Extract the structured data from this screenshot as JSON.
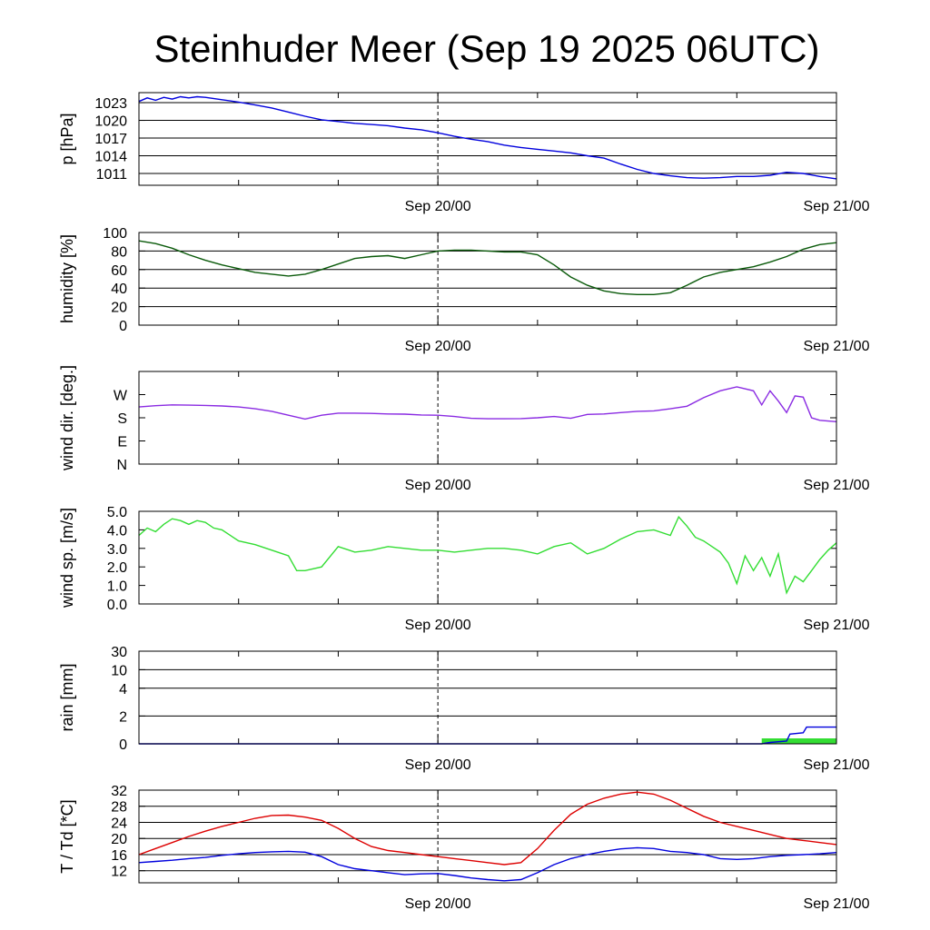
{
  "title": "Steinhuder Meer (Sep 19 2025 06UTC)",
  "x_ticks": [
    "Sep 20/00",
    "Sep 21/00"
  ],
  "chart_data": [
    {
      "type": "line",
      "id": "pressure",
      "ylabel": "p [hPa]",
      "ylim": [
        1009,
        1024.7
      ],
      "yticks": [
        1011,
        1014,
        1017,
        1020,
        1023
      ],
      "ytick_labels": [
        "1011",
        "1014",
        "1017",
        "1020",
        "1023"
      ],
      "gridlines": [
        1011,
        1014,
        1017,
        1020,
        1023
      ],
      "x_range_hours": [
        0,
        42
      ],
      "x_tick_hours": [
        18,
        42
      ],
      "series": [
        {
          "color": "#0000dd",
          "x": [
            0,
            0.5,
            1,
            1.5,
            2,
            2.5,
            3,
            3.5,
            4,
            5,
            6,
            7,
            8,
            9,
            10,
            11,
            12,
            13,
            14,
            15,
            16,
            17,
            18,
            19,
            20,
            21,
            22,
            23,
            24,
            25,
            26,
            27,
            28,
            29,
            30,
            31,
            32,
            33,
            34,
            35,
            36,
            37,
            38,
            39,
            40,
            41,
            42
          ],
          "y": [
            1023.2,
            1023.8,
            1023.4,
            1023.9,
            1023.6,
            1024.0,
            1023.8,
            1024.0,
            1023.9,
            1023.5,
            1023.1,
            1022.6,
            1022.1,
            1021.4,
            1020.7,
            1020.1,
            1019.8,
            1019.5,
            1019.3,
            1019.1,
            1018.7,
            1018.4,
            1017.9,
            1017.3,
            1016.8,
            1016.4,
            1015.8,
            1015.4,
            1015.1,
            1014.8,
            1014.5,
            1014.0,
            1013.6,
            1012.6,
            1011.7,
            1011.0,
            1010.6,
            1010.3,
            1010.2,
            1010.3,
            1010.5,
            1010.5,
            1010.7,
            1011.2,
            1011.0,
            1010.5,
            1010.1
          ]
        }
      ]
    },
    {
      "type": "line",
      "id": "humidity",
      "ylabel": "humidity [%]",
      "ylim": [
        0,
        100
      ],
      "yticks": [
        0,
        20,
        40,
        60,
        80,
        100
      ],
      "ytick_labels": [
        "0",
        "20",
        "40",
        "60",
        "80",
        "100"
      ],
      "gridlines": [
        20,
        40,
        60,
        80
      ],
      "x_range_hours": [
        0,
        42
      ],
      "x_tick_hours": [
        18,
        42
      ],
      "series": [
        {
          "color": "#0a5a0a",
          "x": [
            0,
            1,
            2,
            3,
            4,
            5,
            6,
            7,
            8,
            9,
            10,
            11,
            12,
            13,
            14,
            15,
            16,
            17,
            18,
            19,
            20,
            21,
            22,
            23,
            24,
            25,
            26,
            27,
            28,
            29,
            30,
            31,
            32,
            33,
            34,
            35,
            36,
            37,
            38,
            39,
            40,
            41,
            42
          ],
          "y": [
            91,
            88,
            83,
            76,
            70,
            65,
            61,
            57,
            55,
            53,
            55,
            60,
            66,
            72,
            74,
            75,
            72,
            76,
            80,
            81,
            81,
            80,
            79,
            79,
            76,
            65,
            52,
            43,
            37,
            34,
            33,
            33,
            35,
            43,
            52,
            57,
            60,
            63,
            68,
            74,
            82,
            87,
            89
          ]
        }
      ]
    },
    {
      "type": "line",
      "id": "wind-direction",
      "ylabel": "wind dir. [deg.]",
      "ylim": [
        0,
        360
      ],
      "yticks": [
        0,
        90,
        180,
        270
      ],
      "ytick_labels": [
        "N",
        "E",
        "S",
        "W"
      ],
      "gridlines": [],
      "x_range_hours": [
        0,
        42
      ],
      "x_tick_hours": [
        18,
        42
      ],
      "series": [
        {
          "color": "#8a2be2",
          "x": [
            0,
            1,
            2,
            3,
            4,
            5,
            6,
            7,
            8,
            9,
            10,
            11,
            12,
            13,
            14,
            15,
            16,
            17,
            18,
            19,
            20,
            21,
            22,
            23,
            24,
            25,
            26,
            27,
            28,
            29,
            30,
            31,
            32,
            33,
            34,
            35,
            36,
            37,
            37.5,
            38,
            38.5,
            39,
            39.5,
            40,
            40.5,
            41,
            42
          ],
          "y": [
            222,
            227,
            230,
            229,
            228,
            226,
            222,
            215,
            205,
            190,
            175,
            190,
            198,
            198,
            197,
            195,
            194,
            191,
            190,
            185,
            178,
            176,
            176,
            177,
            180,
            185,
            178,
            193,
            195,
            200,
            205,
            207,
            215,
            225,
            258,
            285,
            300,
            285,
            230,
            285,
            245,
            200,
            265,
            260,
            180,
            170,
            165
          ]
        }
      ]
    },
    {
      "type": "line",
      "id": "wind-speed",
      "ylabel": "wind sp. [m/s]",
      "ylim": [
        0,
        5
      ],
      "yticks": [
        0,
        1,
        2,
        3,
        4,
        5
      ],
      "ytick_labels": [
        "0.0",
        "1.0",
        "2.0",
        "3.0",
        "4.0",
        "5.0"
      ],
      "gridlines": [],
      "x_range_hours": [
        0,
        42
      ],
      "x_tick_hours": [
        18,
        42
      ],
      "series": [
        {
          "color": "#33dd33",
          "x": [
            0,
            0.5,
            1,
            1.5,
            2,
            2.5,
            3,
            3.5,
            4,
            4.5,
            5,
            6,
            7,
            8,
            9,
            9.5,
            10,
            11,
            12,
            13,
            14,
            15,
            16,
            17,
            18,
            19,
            20,
            21,
            22,
            23,
            24,
            25,
            26,
            27,
            28,
            29,
            30,
            31,
            32,
            32.5,
            33,
            33.5,
            34,
            35,
            35.5,
            36,
            36.5,
            37,
            37.5,
            38,
            38.5,
            39,
            39.5,
            40,
            40.5,
            41,
            41.5,
            42
          ],
          "y": [
            3.7,
            4.1,
            3.9,
            4.3,
            4.6,
            4.5,
            4.3,
            4.5,
            4.4,
            4.1,
            4.0,
            3.4,
            3.2,
            2.9,
            2.6,
            1.8,
            1.8,
            2.0,
            3.1,
            2.8,
            2.9,
            3.1,
            3.0,
            2.9,
            2.9,
            2.8,
            2.9,
            3.0,
            3.0,
            2.9,
            2.7,
            3.1,
            3.3,
            2.7,
            3.0,
            3.5,
            3.9,
            4.0,
            3.7,
            4.7,
            4.2,
            3.6,
            3.4,
            2.8,
            2.2,
            1.1,
            2.6,
            1.8,
            2.5,
            1.5,
            2.7,
            0.6,
            1.5,
            1.2,
            1.8,
            2.4,
            2.9,
            3.3
          ]
        }
      ]
    },
    {
      "type": "line",
      "id": "rain",
      "ylabel": "rain [mm]",
      "ylim": [
        0,
        30
      ],
      "yticks": [
        0,
        2,
        4,
        10,
        30
      ],
      "ytick_labels": [
        "0",
        "2",
        "4",
        "10",
        "30"
      ],
      "gridlines": [
        2,
        4,
        10
      ],
      "x_range_hours": [
        0,
        42
      ],
      "x_tick_hours": [
        18,
        42
      ],
      "series": [
        {
          "color": "#0000dd",
          "x": [
            0,
            37.5,
            38,
            39,
            39.2,
            40,
            40.2,
            42
          ],
          "y": [
            0,
            0,
            0.1,
            0.2,
            0.7,
            0.8,
            1.2,
            1.2
          ]
        }
      ]
    },
    {
      "type": "line",
      "id": "temperature-dewpoint",
      "ylabel": "T / Td [*C]",
      "ylim": [
        9,
        32
      ],
      "yticks": [
        12,
        16,
        20,
        24,
        28,
        32
      ],
      "ytick_labels": [
        "12",
        "16",
        "20",
        "24",
        "28",
        "32"
      ],
      "gridlines": [
        12,
        16,
        20,
        24,
        28
      ],
      "x_range_hours": [
        0,
        42
      ],
      "x_tick_hours": [
        18,
        42
      ],
      "series": [
        {
          "color": "#dd0000",
          "x": [
            0,
            1,
            2,
            3,
            4,
            5,
            6,
            7,
            8,
            9,
            10,
            11,
            12,
            13,
            14,
            15,
            16,
            17,
            18,
            19,
            20,
            21,
            22,
            23,
            24,
            25,
            26,
            27,
            28,
            29,
            30,
            31,
            32,
            33,
            34,
            35,
            36,
            37,
            38,
            39,
            40,
            41,
            42
          ],
          "y": [
            16.0,
            17.5,
            19.0,
            20.5,
            21.8,
            23.0,
            24.0,
            25.0,
            25.7,
            25.8,
            25.3,
            24.5,
            22.5,
            20.0,
            18.0,
            17.0,
            16.5,
            16.0,
            15.5,
            15.0,
            14.5,
            14.0,
            13.5,
            14.0,
            17.5,
            22.0,
            26.0,
            28.5,
            30.0,
            31.0,
            31.5,
            31.0,
            29.5,
            27.5,
            25.5,
            24.0,
            23.0,
            22.0,
            21.0,
            20.0,
            19.5,
            19.0,
            18.5
          ]
        },
        {
          "color": "#0000dd",
          "x": [
            0,
            1,
            2,
            3,
            4,
            5,
            6,
            7,
            8,
            9,
            10,
            11,
            12,
            13,
            14,
            15,
            16,
            17,
            18,
            19,
            20,
            21,
            22,
            23,
            24,
            25,
            26,
            27,
            28,
            29,
            30,
            31,
            32,
            33,
            34,
            35,
            36,
            37,
            38,
            39,
            40,
            41,
            42
          ],
          "y": [
            14.0,
            14.3,
            14.6,
            15.0,
            15.3,
            15.8,
            16.2,
            16.5,
            16.7,
            16.8,
            16.6,
            15.5,
            13.5,
            12.5,
            12.0,
            11.5,
            11.0,
            11.2,
            11.3,
            10.8,
            10.2,
            9.8,
            9.5,
            9.8,
            11.5,
            13.5,
            15.0,
            16.0,
            16.8,
            17.4,
            17.7,
            17.5,
            16.8,
            16.5,
            16.0,
            15.0,
            14.8,
            15.0,
            15.5,
            15.8,
            16.0,
            16.2,
            16.5
          ]
        }
      ]
    }
  ]
}
